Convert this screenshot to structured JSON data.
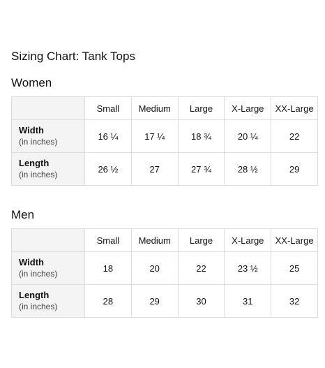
{
  "title": "Sizing Chart: Tank Tops",
  "sizes": [
    "Small",
    "Medium",
    "Large",
    "X-Large",
    "XX-Large"
  ],
  "women": {
    "heading": "Women",
    "rows": [
      {
        "label": "Width",
        "unit": "(in inches)",
        "values": [
          "16 ¼",
          "17 ¼",
          "18 ¾",
          "20 ¼",
          "22"
        ]
      },
      {
        "label": "Length",
        "unit": "(in inches)",
        "values": [
          "26 ½",
          "27",
          "27 ¾",
          "28 ½",
          "29"
        ]
      }
    ]
  },
  "men": {
    "heading": "Men",
    "rows": [
      {
        "label": "Width",
        "unit": "(in inches)",
        "values": [
          "18",
          "20",
          "22",
          "23 ½",
          "25"
        ]
      },
      {
        "label": "Length",
        "unit": "(in inches)",
        "values": [
          "28",
          "29",
          "30",
          "31",
          "32"
        ]
      }
    ]
  }
}
